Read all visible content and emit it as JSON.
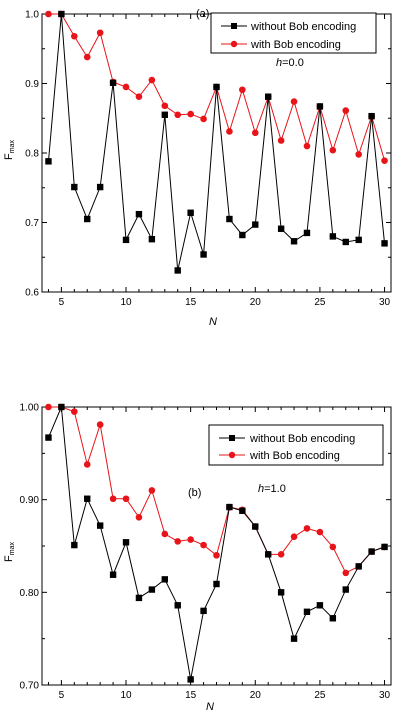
{
  "chart_data": [
    {
      "type": "line",
      "panel_label": "(a)",
      "annotation": {
        "prefix": "h",
        "text": "=0.0"
      },
      "xlabel": "N",
      "ylabel": {
        "main": "F",
        "sub": "max"
      },
      "xlim": [
        3.5,
        30.5
      ],
      "ylim": [
        0.6,
        1.0
      ],
      "x_ticks": [
        5,
        10,
        15,
        20,
        25,
        30
      ],
      "y_ticks": [
        0.6,
        0.7,
        0.8,
        0.9,
        1.0
      ],
      "y_tick_labels": [
        "0.6",
        "0.7",
        "0.8",
        "0.9",
        "1.0"
      ],
      "x": [
        4,
        5,
        6,
        7,
        8,
        9,
        10,
        11,
        12,
        13,
        14,
        15,
        16,
        17,
        18,
        19,
        20,
        21,
        22,
        23,
        24,
        25,
        26,
        27,
        28,
        29,
        30
      ],
      "series": [
        {
          "name": "without Bob encoding",
          "color": "#000000",
          "marker": "square",
          "values": [
            0.788,
            1.0,
            0.751,
            0.705,
            0.751,
            0.901,
            0.675,
            0.712,
            0.676,
            0.855,
            0.631,
            0.714,
            0.654,
            0.895,
            0.705,
            0.682,
            0.697,
            0.881,
            0.691,
            0.673,
            0.685,
            0.867,
            0.68,
            0.672,
            0.675,
            0.853,
            0.67
          ]
        },
        {
          "name": "with Bob encoding",
          "color": "#e8141a",
          "marker": "circle",
          "values": [
            1.0,
            1.0,
            0.968,
            0.938,
            0.973,
            0.902,
            0.895,
            0.881,
            0.905,
            0.868,
            0.855,
            0.856,
            0.849,
            0.895,
            0.831,
            0.891,
            0.829,
            0.881,
            0.818,
            0.874,
            0.81,
            0.867,
            0.804,
            0.861,
            0.798,
            0.853,
            0.789
          ]
        }
      ],
      "legend": "top-right"
    },
    {
      "type": "line",
      "panel_label": "(b)",
      "annotation": {
        "prefix": "h",
        "text": "=1.0"
      },
      "xlabel": "N",
      "ylabel": {
        "main": "F",
        "sub": "max"
      },
      "xlim": [
        3.5,
        30.5
      ],
      "ylim": [
        0.7,
        1.0
      ],
      "x_ticks": [
        5,
        10,
        15,
        20,
        25,
        30
      ],
      "y_ticks": [
        0.7,
        0.8,
        0.9,
        1.0
      ],
      "y_tick_labels": [
        "0.70",
        "0.80",
        "0.90",
        "1.00"
      ],
      "x": [
        4,
        5,
        6,
        7,
        8,
        9,
        10,
        11,
        12,
        13,
        14,
        15,
        16,
        17,
        18,
        19,
        20,
        21,
        22,
        23,
        24,
        25,
        26,
        27,
        28,
        29,
        30
      ],
      "series": [
        {
          "name": "without Bob encoding",
          "color": "#000000",
          "marker": "square",
          "values": [
            0.967,
            1.0,
            0.851,
            0.901,
            0.872,
            0.819,
            0.854,
            0.794,
            0.803,
            0.814,
            0.786,
            0.706,
            0.78,
            0.809,
            0.892,
            0.888,
            0.871,
            0.841,
            0.8,
            0.75,
            0.779,
            0.786,
            0.772,
            0.803,
            0.828,
            0.844,
            0.849
          ]
        },
        {
          "name": "with Bob encoding",
          "color": "#e8141a",
          "marker": "circle",
          "values": [
            1.0,
            1.0,
            0.995,
            0.938,
            0.981,
            0.901,
            0.901,
            0.881,
            0.91,
            0.863,
            0.855,
            0.857,
            0.851,
            0.84,
            0.892,
            0.889,
            0.871,
            0.841,
            0.841,
            0.86,
            0.869,
            0.865,
            0.849,
            0.821,
            0.828,
            0.844,
            0.849
          ]
        }
      ],
      "legend": "top-right"
    }
  ]
}
